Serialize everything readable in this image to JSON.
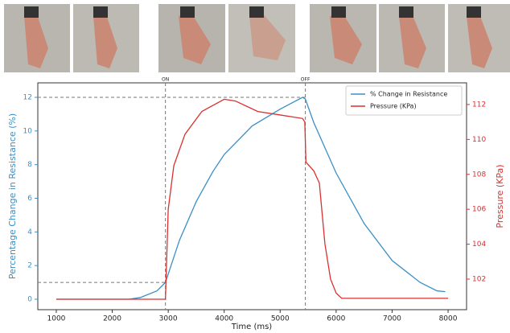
{
  "chart_data": {
    "type": "line",
    "xlabel": "Time (ms)",
    "ylabel": "Percentage Change in Resistance (%)",
    "y2label": "Pressure (KPa)",
    "xlim": [
      670,
      8330
    ],
    "xticks": [
      1000,
      2000,
      3000,
      4000,
      5000,
      6000,
      7000,
      8000
    ],
    "ylim": [
      -0.62,
      12.86
    ],
    "yticks": [
      0,
      2,
      4,
      6,
      8,
      10,
      12
    ],
    "y2lim": [
      100.25,
      113.24
    ],
    "y2ticks": [
      102,
      104,
      106,
      108,
      110,
      112
    ],
    "legend": "upper right",
    "vlines": [
      {
        "x": 2950,
        "label": "ON"
      },
      {
        "x": 5450,
        "label": "OFF"
      }
    ],
    "hlines": [
      1,
      12
    ],
    "series": [
      {
        "name": "% Change in Resistance",
        "color": "#3b8fc6",
        "x": [
          1000,
          2000,
          2300,
          2500,
          2800,
          2950,
          3000,
          3200,
          3500,
          3800,
          4000,
          4500,
          5000,
          5400,
          5450,
          5600,
          6000,
          6500,
          7000,
          7500,
          7800,
          7950
        ],
        "values": [
          0,
          0,
          0,
          0.1,
          0.5,
          1.0,
          1.5,
          3.5,
          5.8,
          7.6,
          8.6,
          10.3,
          11.3,
          12.0,
          11.9,
          10.5,
          7.5,
          4.5,
          2.3,
          1.0,
          0.5,
          0.45
        ]
      },
      {
        "name": "Pressure (KPa)",
        "color": "#d9312f",
        "axis": "y2",
        "x": [
          1000,
          2950,
          3000,
          3100,
          3300,
          3600,
          4000,
          4200,
          4600,
          5000,
          5400,
          5440,
          5460,
          5600,
          5700,
          5800,
          5900,
          6000,
          6100,
          8000
        ],
        "values": [
          100.85,
          100.85,
          106,
          108.5,
          110.3,
          111.6,
          112.3,
          112.2,
          111.6,
          111.4,
          111.2,
          111.0,
          108.7,
          108.2,
          107.5,
          104,
          102,
          101.2,
          100.9,
          100.9
        ]
      }
    ]
  }
}
